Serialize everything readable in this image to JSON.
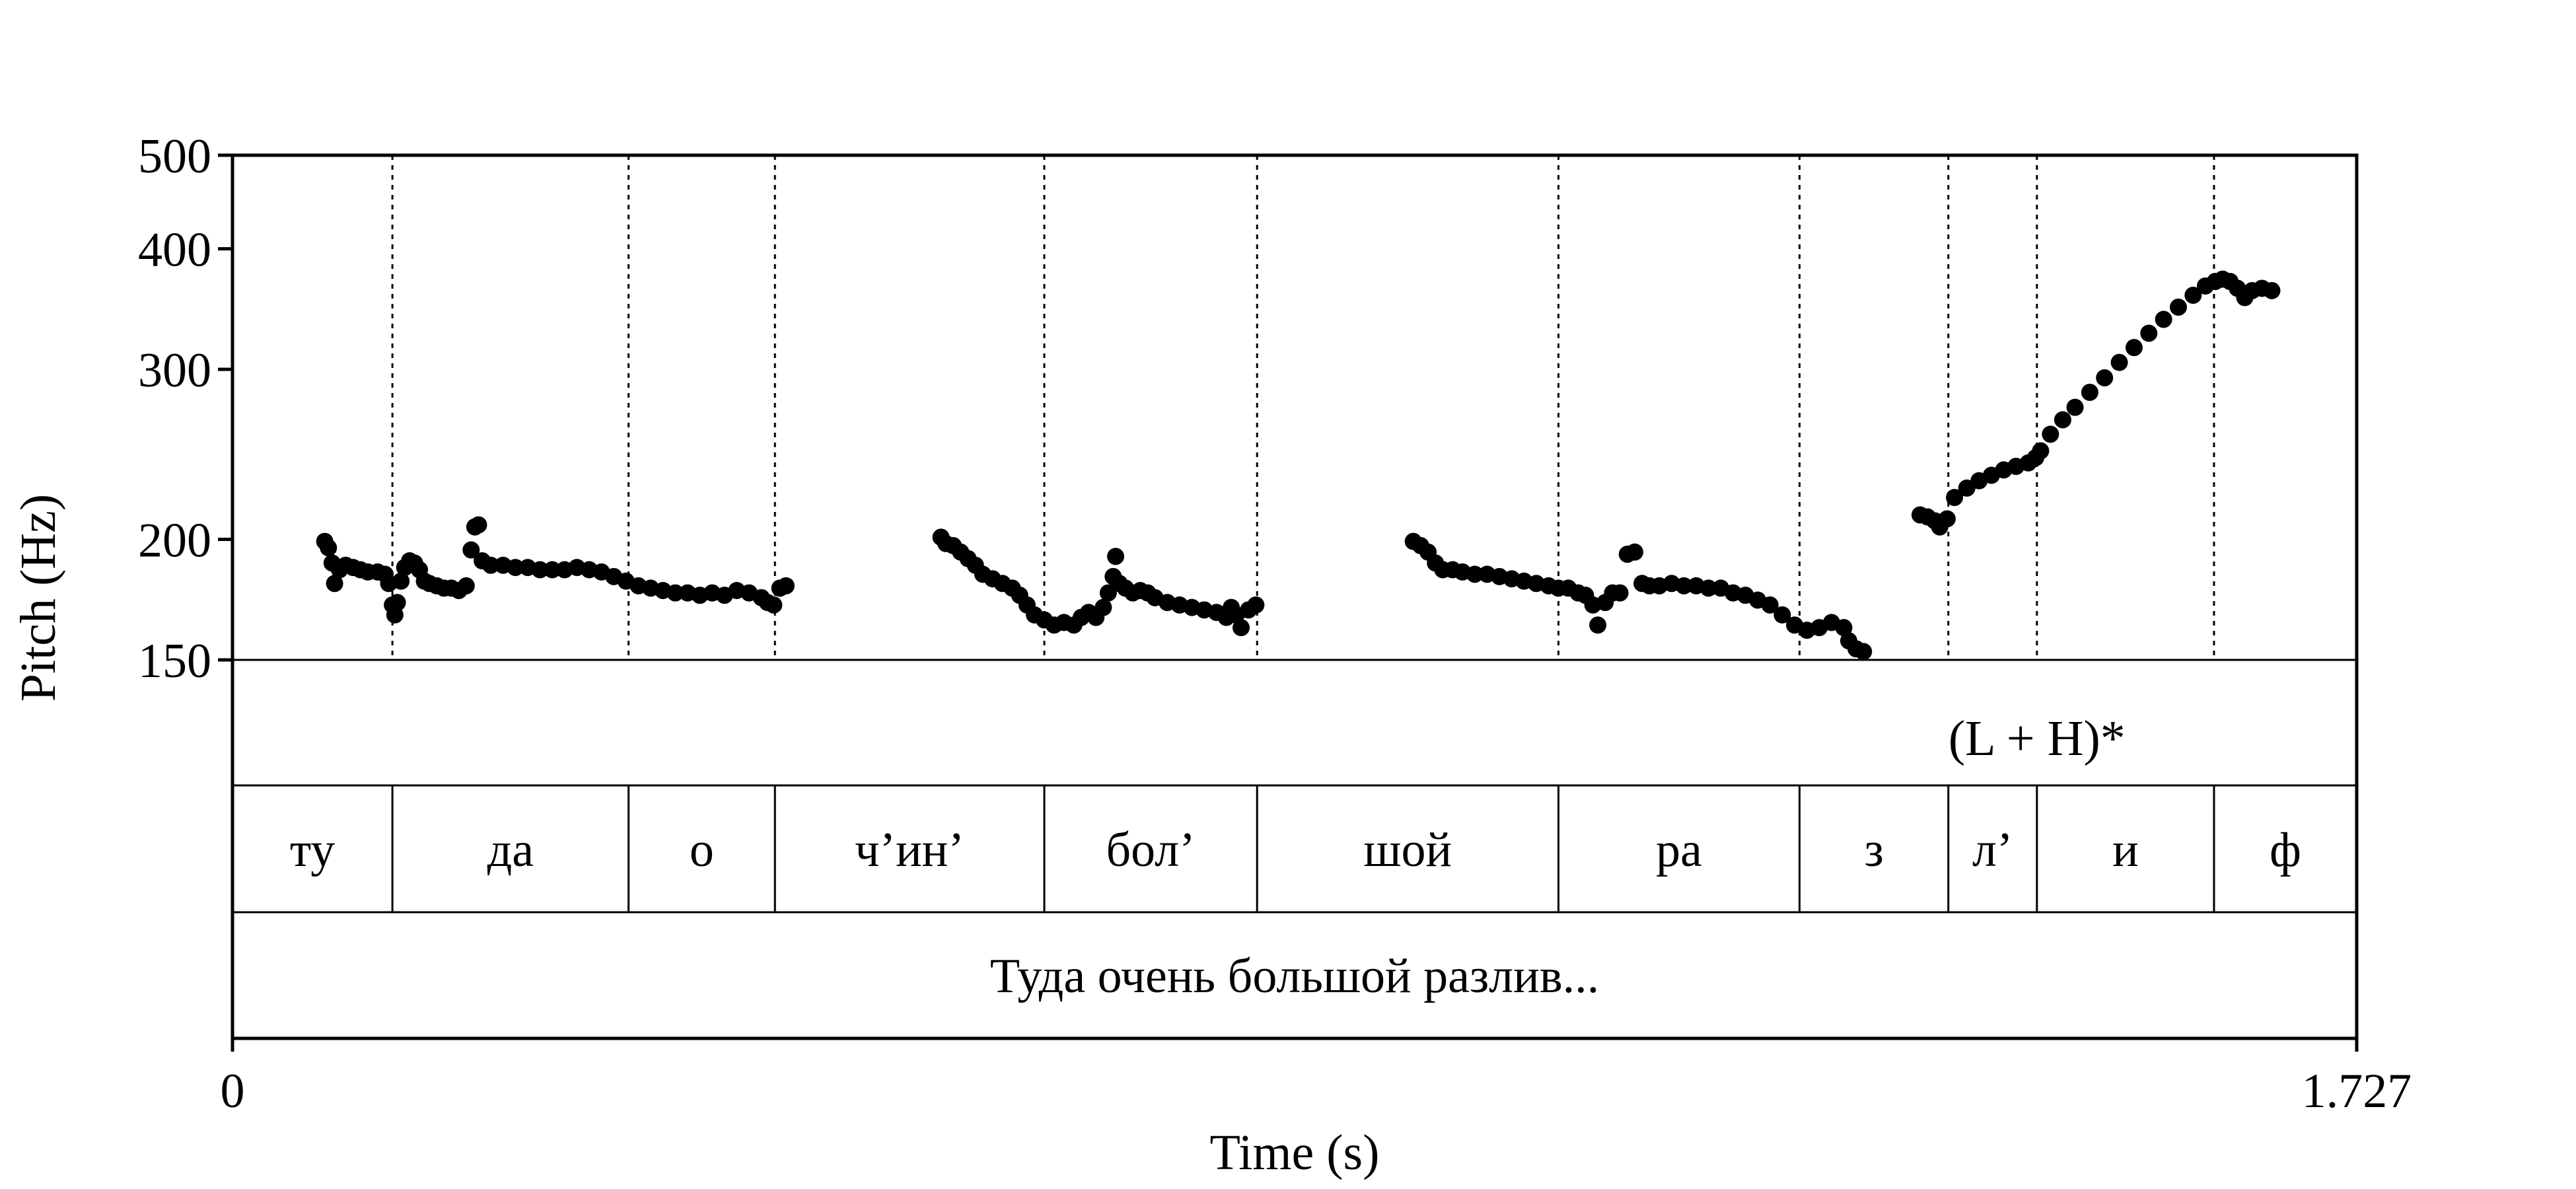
{
  "chart_data": {
    "type": "scatter",
    "title": "",
    "xlabel": "Time (s)",
    "ylabel": "Pitch (Hz)",
    "xlim": [
      0,
      1.727
    ],
    "ylim": [
      150,
      500
    ],
    "yscale": "log",
    "x_tick_labels": [
      "0",
      "1.727"
    ],
    "y_ticks": [
      150,
      200,
      300,
      400,
      500
    ],
    "y_tick_labels": [
      "150",
      "200",
      "300",
      "400",
      "500"
    ],
    "grid": false,
    "boundaries": [
      0.13,
      0.322,
      0.441,
      0.66,
      0.833,
      1.078,
      1.274,
      1.395,
      1.467,
      1.611
    ],
    "tiers": {
      "tones": [
        {
          "label": "(L + H)*",
          "time": 1.467
        }
      ],
      "segments": [
        {
          "label": "ту",
          "start": 0,
          "end": 0.13
        },
        {
          "label": "да",
          "start": 0.13,
          "end": 0.322
        },
        {
          "label": "о",
          "start": 0.322,
          "end": 0.441
        },
        {
          "label": "ч’ин’",
          "start": 0.441,
          "end": 0.66
        },
        {
          "label": "бол’",
          "start": 0.66,
          "end": 0.833
        },
        {
          "label": "шой",
          "start": 0.833,
          "end": 1.078
        },
        {
          "label": "ра",
          "start": 1.078,
          "end": 1.274
        },
        {
          "label": "з",
          "start": 1.274,
          "end": 1.395
        },
        {
          "label": "л’",
          "start": 1.395,
          "end": 1.467
        },
        {
          "label": "и",
          "start": 1.467,
          "end": 1.611
        },
        {
          "label": "ф",
          "start": 1.611,
          "end": 1.727
        }
      ],
      "sentence": {
        "label": "Туда очень большой разлив...",
        "start": 0,
        "end": 1.727
      }
    },
    "series": [
      {
        "points": [
          [
            0.075,
            199
          ],
          [
            0.078,
            196
          ],
          [
            0.081,
            189
          ],
          [
            0.083,
            180
          ],
          [
            0.087,
            186
          ],
          [
            0.092,
            188
          ],
          [
            0.098,
            187
          ],
          [
            0.104,
            186
          ],
          [
            0.11,
            185
          ],
          [
            0.118,
            185
          ],
          [
            0.124,
            184
          ],
          [
            0.127,
            180
          ],
          [
            0.13,
            171
          ],
          [
            0.132,
            167
          ],
          [
            0.134,
            172
          ],
          [
            0.137,
            181
          ],
          [
            0.14,
            187
          ],
          [
            0.144,
            190
          ],
          [
            0.148,
            189
          ],
          [
            0.152,
            186
          ],
          [
            0.156,
            181
          ],
          [
            0.16,
            180
          ],
          [
            0.166,
            179
          ],
          [
            0.172,
            178
          ],
          [
            0.178,
            178
          ],
          [
            0.184,
            177
          ],
          [
            0.19,
            179
          ],
          [
            0.194,
            195
          ],
          [
            0.197,
            206
          ],
          [
            0.2,
            207
          ],
          [
            0.203,
            190
          ],
          [
            0.21,
            188
          ],
          [
            0.22,
            188
          ],
          [
            0.23,
            187
          ],
          [
            0.24,
            187
          ],
          [
            0.25,
            186
          ],
          [
            0.26,
            186
          ],
          [
            0.27,
            186
          ],
          [
            0.28,
            187
          ],
          [
            0.29,
            186
          ],
          [
            0.3,
            185
          ],
          [
            0.31,
            183
          ],
          [
            0.32,
            181
          ],
          [
            0.33,
            179
          ],
          [
            0.34,
            178
          ],
          [
            0.35,
            177
          ],
          [
            0.36,
            176
          ],
          [
            0.37,
            176
          ],
          [
            0.38,
            175
          ],
          [
            0.39,
            176
          ],
          [
            0.4,
            175
          ],
          [
            0.41,
            177
          ],
          [
            0.42,
            176
          ],
          [
            0.43,
            174
          ],
          [
            0.435,
            172
          ],
          [
            0.44,
            171
          ],
          [
            0.445,
            178
          ],
          [
            0.45,
            179
          ]
        ]
      },
      {
        "points": [
          [
            0.576,
            201
          ],
          [
            0.58,
            198
          ],
          [
            0.586,
            197
          ],
          [
            0.592,
            194
          ],
          [
            0.598,
            191
          ],
          [
            0.604,
            188
          ],
          [
            0.61,
            184
          ],
          [
            0.618,
            182
          ],
          [
            0.626,
            180
          ],
          [
            0.634,
            178
          ],
          [
            0.64,
            175
          ],
          [
            0.646,
            171
          ],
          [
            0.652,
            167
          ],
          [
            0.66,
            165
          ],
          [
            0.668,
            163
          ],
          [
            0.676,
            164
          ],
          [
            0.684,
            163
          ],
          [
            0.69,
            166
          ],
          [
            0.696,
            168
          ],
          [
            0.702,
            166
          ],
          [
            0.708,
            170
          ],
          [
            0.712,
            176
          ],
          [
            0.716,
            183
          ],
          [
            0.718,
            192
          ],
          [
            0.721,
            180
          ],
          [
            0.726,
            178
          ],
          [
            0.732,
            176
          ],
          [
            0.738,
            177
          ],
          [
            0.744,
            176
          ],
          [
            0.75,
            174
          ],
          [
            0.76,
            172
          ],
          [
            0.77,
            171
          ],
          [
            0.78,
            170
          ],
          [
            0.79,
            169
          ],
          [
            0.8,
            168
          ],
          [
            0.808,
            166
          ],
          [
            0.812,
            170
          ],
          [
            0.816,
            167
          ],
          [
            0.82,
            162
          ],
          [
            0.826,
            169
          ],
          [
            0.832,
            171
          ]
        ]
      },
      {
        "points": [
          [
            0.96,
            199
          ],
          [
            0.966,
            197
          ],
          [
            0.972,
            194
          ],
          [
            0.978,
            189
          ],
          [
            0.984,
            186
          ],
          [
            0.992,
            186
          ],
          [
            1.0,
            185
          ],
          [
            1.01,
            184
          ],
          [
            1.02,
            184
          ],
          [
            1.03,
            183
          ],
          [
            1.04,
            182
          ],
          [
            1.05,
            181
          ],
          [
            1.06,
            180
          ],
          [
            1.07,
            179
          ],
          [
            1.078,
            178
          ],
          [
            1.086,
            178
          ],
          [
            1.094,
            176
          ],
          [
            1.1,
            175
          ],
          [
            1.106,
            171
          ],
          [
            1.11,
            163
          ],
          [
            1.116,
            172
          ],
          [
            1.122,
            176
          ],
          [
            1.128,
            176
          ],
          [
            1.134,
            193
          ],
          [
            1.14,
            194
          ],
          [
            1.146,
            180
          ],
          [
            1.152,
            179
          ],
          [
            1.16,
            179
          ],
          [
            1.17,
            180
          ],
          [
            1.18,
            179
          ],
          [
            1.19,
            179
          ],
          [
            1.2,
            178
          ],
          [
            1.21,
            178
          ],
          [
            1.22,
            176
          ],
          [
            1.23,
            175
          ],
          [
            1.24,
            173
          ],
          [
            1.25,
            171
          ],
          [
            1.26,
            167
          ],
          [
            1.27,
            163
          ],
          [
            1.28,
            161
          ],
          [
            1.29,
            162
          ],
          [
            1.3,
            164
          ],
          [
            1.31,
            162
          ],
          [
            1.314,
            157
          ],
          [
            1.32,
            154
          ],
          [
            1.326,
            153
          ]
        ]
      },
      {
        "points": [
          [
            1.372,
            212
          ],
          [
            1.378,
            211
          ],
          [
            1.384,
            209
          ],
          [
            1.388,
            206
          ],
          [
            1.394,
            210
          ],
          [
            1.4,
            221
          ],
          [
            1.41,
            226
          ],
          [
            1.42,
            230
          ],
          [
            1.43,
            233
          ],
          [
            1.44,
            236
          ],
          [
            1.45,
            238
          ],
          [
            1.46,
            240
          ],
          [
            1.466,
            243
          ],
          [
            1.47,
            247
          ],
          [
            1.478,
            257
          ],
          [
            1.488,
            266
          ],
          [
            1.498,
            274
          ],
          [
            1.51,
            284
          ],
          [
            1.522,
            294
          ],
          [
            1.534,
            305
          ],
          [
            1.546,
            316
          ],
          [
            1.558,
            327
          ],
          [
            1.57,
            338
          ],
          [
            1.582,
            348
          ],
          [
            1.594,
            358
          ],
          [
            1.604,
            366
          ],
          [
            1.612,
            370
          ],
          [
            1.618,
            372
          ],
          [
            1.624,
            370
          ],
          [
            1.63,
            364
          ],
          [
            1.636,
            356
          ],
          [
            1.642,
            362
          ],
          [
            1.65,
            364
          ],
          [
            1.658,
            362
          ]
        ]
      }
    ]
  }
}
